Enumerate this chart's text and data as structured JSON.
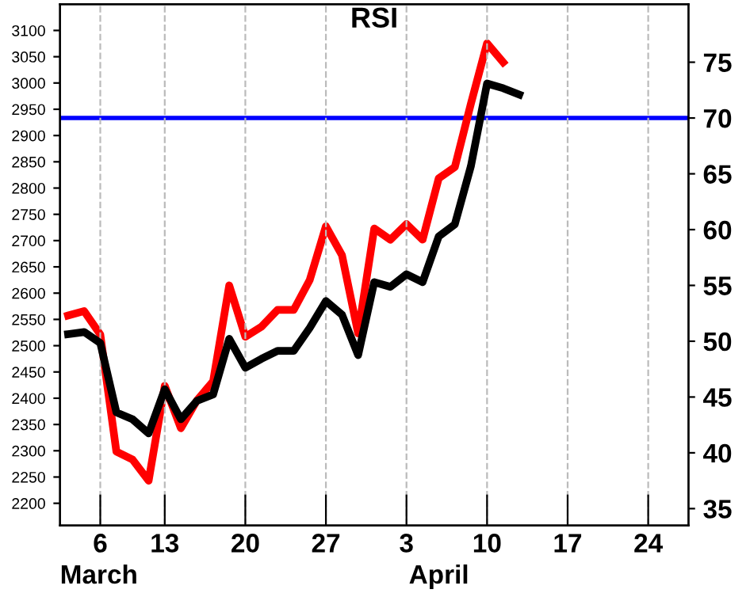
{
  "chart_data": {
    "type": "line",
    "title": "RSI",
    "categories": [
      null,
      null,
      "6",
      null,
      null,
      null,
      "13",
      null,
      null,
      null,
      null,
      "20",
      null,
      null,
      null,
      null,
      "27",
      null,
      null,
      null,
      null,
      "3",
      null,
      null,
      null,
      null,
      "10",
      null,
      null,
      null,
      null,
      "17",
      null,
      null,
      null,
      null,
      "24",
      null,
      null
    ],
    "series": [
      {
        "color": "#000000",
        "values": [
          2522,
          2526,
          2505,
          2373,
          2360,
          2333,
          2417,
          2360,
          2395,
          2407,
          2513,
          2458,
          2475,
          2490,
          2490,
          2534,
          2585,
          2559,
          2482,
          2621,
          2612,
          2636,
          2621,
          2708,
          2731,
          2842,
          2999,
          2990,
          2978,
          null,
          null,
          null,
          null,
          null,
          null,
          null,
          null,
          null,
          null
        ]
      },
      {
        "color": "#ff0000",
        "axis": "y2",
        "values": [
          52.3,
          52.7,
          50.6,
          40.1,
          39.4,
          37.5,
          46.0,
          42.2,
          44.7,
          46.4,
          55.0,
          50.4,
          51.3,
          52.8,
          52.8,
          55.5,
          60.3,
          57.7,
          50.7,
          60.1,
          59.1,
          60.5,
          59.1,
          64.6,
          65.6,
          71.3,
          76.7,
          75.0,
          null,
          null,
          null,
          null,
          null,
          null,
          null,
          null,
          null,
          null,
          null
        ]
      }
    ],
    "annotations": [
      "March",
      "April"
    ],
    "ylim": [
      2158,
      3150
    ],
    "yticks": [
      2200,
      2250,
      2300,
      2350,
      2400,
      2450,
      2500,
      2550,
      2600,
      2650,
      2700,
      2750,
      2800,
      2850,
      2900,
      2950,
      3000,
      3050,
      3100
    ],
    "y2lim": [
      33.5,
      80.2
    ],
    "y2ticks": [
      35,
      40,
      45,
      50,
      55,
      60,
      65,
      70,
      75
    ],
    "ref_lines": [
      {
        "axis": "y2",
        "value": 70,
        "color": "#0000ff"
      }
    ],
    "grid": "x",
    "legend": false,
    "marker": "none",
    "line_style": "solid"
  }
}
